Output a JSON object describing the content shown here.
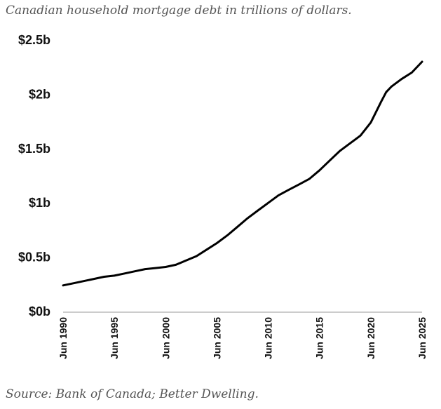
{
  "title": "Canadian household mortgage debt in trillions of dollars.",
  "source": "Source: Bank of Canada; Better Dwelling.",
  "chart_data": {
    "type": "line",
    "title": "Canadian household mortgage debt in trillions of dollars.",
    "xlabel": "",
    "ylabel": "",
    "ylim": [
      0,
      2.5
    ],
    "y_ticks": [
      0,
      0.5,
      1,
      1.5,
      2,
      2.5
    ],
    "y_tick_labels": [
      "$0b",
      "$0.5b",
      "$1b",
      "$1.5b",
      "$2b",
      "$2.5b"
    ],
    "xlim": [
      1990.42,
      2025.42
    ],
    "x_ticks": [
      1990.42,
      1995.42,
      2000.42,
      2005.42,
      2010.42,
      2015.42,
      2020.42,
      2025.42
    ],
    "x_tick_labels": [
      "Jun 1990",
      "Jun 1995",
      "Jun 2000",
      "Jun 2005",
      "Jun 2010",
      "Jun 2015",
      "Jun 2020",
      "Jun 2025"
    ],
    "grid": false,
    "legend": "none",
    "line_color": "#000000",
    "series": [
      {
        "x": [
          1990.42,
          1991.42,
          1992.42,
          1993.42,
          1994.42,
          1995.42,
          1996.42,
          1997.42,
          1998.42,
          1999.42,
          2000.42,
          2001.42,
          2002.42,
          2003.42,
          2004.42,
          2005.42,
          2006.42,
          2007.42,
          2008.42,
          2009.42,
          2010.42,
          2011.42,
          2012.42,
          2013.42,
          2014.42,
          2015.42,
          2016.42,
          2017.42,
          2018.42,
          2019.42,
          2020.42,
          2021.42,
          2021.92,
          2022.42,
          2023.42,
          2024.42,
          2025.42
        ],
        "values": [
          0.24,
          0.26,
          0.28,
          0.3,
          0.32,
          0.33,
          0.35,
          0.37,
          0.39,
          0.4,
          0.41,
          0.43,
          0.47,
          0.51,
          0.57,
          0.63,
          0.7,
          0.78,
          0.86,
          0.93,
          1.0,
          1.07,
          1.12,
          1.17,
          1.22,
          1.3,
          1.39,
          1.48,
          1.55,
          1.62,
          1.74,
          1.93,
          2.02,
          2.07,
          2.14,
          2.2,
          2.3
        ]
      }
    ]
  }
}
